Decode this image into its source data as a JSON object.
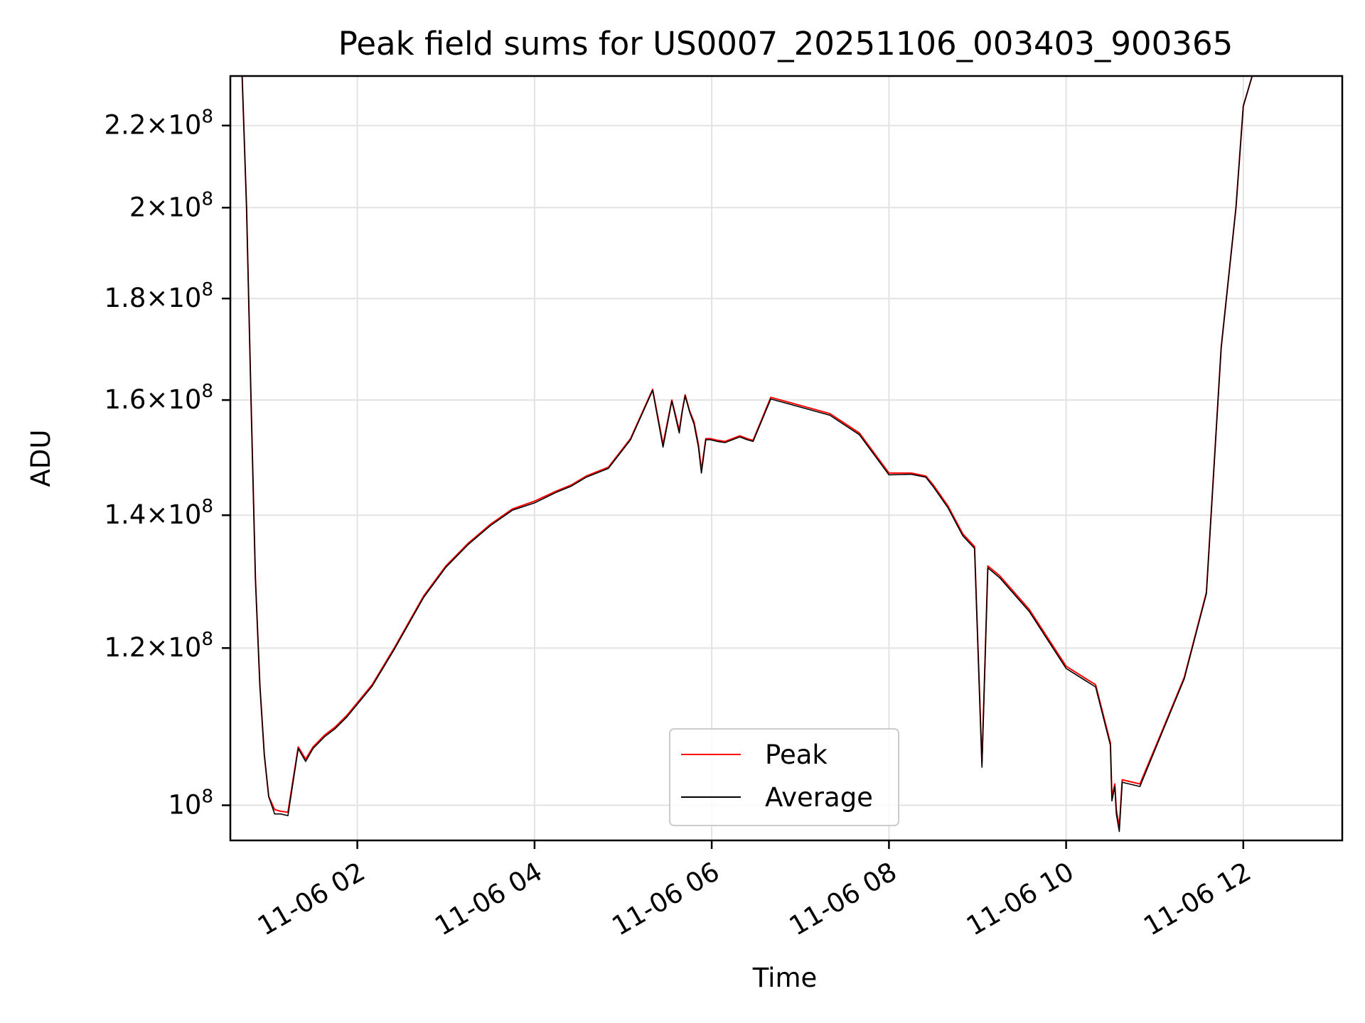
{
  "chart_data": {
    "type": "line",
    "title": "Peak field sums for US0007_20251106_003403_900365",
    "xlabel": "Time",
    "ylabel": "ADU",
    "y_scale": "log",
    "grid": true,
    "legend_position": "lower center",
    "xlim": [
      "2025-11-06 00:34",
      "2025-11-06 13:07"
    ],
    "ylim": [
      96000000,
      233000000
    ],
    "x_ticks": [
      {
        "value": "2025-11-06 02:00",
        "label": "11-06 02"
      },
      {
        "value": "2025-11-06 04:00",
        "label": "11-06 04"
      },
      {
        "value": "2025-11-06 06:00",
        "label": "11-06 06"
      },
      {
        "value": "2025-11-06 08:00",
        "label": "11-06 08"
      },
      {
        "value": "2025-11-06 10:00",
        "label": "11-06 10"
      },
      {
        "value": "2025-11-06 12:00",
        "label": "11-06 12"
      }
    ],
    "y_ticks": [
      {
        "value": 100000000,
        "mantissa": "",
        "exp": "8"
      },
      {
        "value": 120000000,
        "mantissa": "1.2",
        "exp": "8"
      },
      {
        "value": 140000000,
        "mantissa": "1.4",
        "exp": "8"
      },
      {
        "value": 160000000,
        "mantissa": "1.6",
        "exp": "8"
      },
      {
        "value": 180000000,
        "mantissa": "1.8",
        "exp": "8"
      },
      {
        "value": 200000000,
        "mantissa": "2",
        "exp": "8"
      },
      {
        "value": 220000000,
        "mantissa": "2.2",
        "exp": "8"
      }
    ],
    "x": [
      "2025-11-06 00:42",
      "2025-11-06 00:45",
      "2025-11-06 00:48",
      "2025-11-06 00:51",
      "2025-11-06 00:54",
      "2025-11-06 00:57",
      "2025-11-06 01:00",
      "2025-11-06 01:04",
      "2025-11-06 01:08",
      "2025-11-06 01:13",
      "2025-11-06 01:20",
      "2025-11-06 01:25",
      "2025-11-06 01:30",
      "2025-11-06 01:38",
      "2025-11-06 01:45",
      "2025-11-06 01:53",
      "2025-11-06 02:10",
      "2025-11-06 02:25",
      "2025-11-06 02:45",
      "2025-11-06 03:00",
      "2025-11-06 03:15",
      "2025-11-06 03:30",
      "2025-11-06 03:45",
      "2025-11-06 04:00",
      "2025-11-06 04:15",
      "2025-11-06 04:25",
      "2025-11-06 04:35",
      "2025-11-06 04:50",
      "2025-11-06 05:05",
      "2025-11-06 05:20",
      "2025-11-06 05:27",
      "2025-11-06 05:33",
      "2025-11-06 05:38",
      "2025-11-06 05:40",
      "2025-11-06 05:42",
      "2025-11-06 05:45",
      "2025-11-06 05:48",
      "2025-11-06 05:51",
      "2025-11-06 05:53",
      "2025-11-06 05:56",
      "2025-11-06 05:59",
      "2025-11-06 06:04",
      "2025-11-06 06:09",
      "2025-11-06 06:14",
      "2025-11-06 06:19",
      "2025-11-06 06:24",
      "2025-11-06 06:28",
      "2025-11-06 06:40",
      "2025-11-06 07:00",
      "2025-11-06 07:20",
      "2025-11-06 07:40",
      "2025-11-06 08:00",
      "2025-11-06 08:15",
      "2025-11-06 08:25",
      "2025-11-06 08:30",
      "2025-11-06 08:40",
      "2025-11-06 08:50",
      "2025-11-06 08:58",
      "2025-11-06 09:03",
      "2025-11-06 09:07",
      "2025-11-06 09:15",
      "2025-11-06 09:35",
      "2025-11-06 10:00",
      "2025-11-06 10:20",
      "2025-11-06 10:30",
      "2025-11-06 10:31",
      "2025-11-06 10:33",
      "2025-11-06 10:34",
      "2025-11-06 10:36",
      "2025-11-06 10:38",
      "2025-11-06 10:50",
      "2025-11-06 11:05",
      "2025-11-06 11:20",
      "2025-11-06 11:35",
      "2025-11-06 11:45",
      "2025-11-06 11:55",
      "2025-11-06 12:00",
      "2025-11-06 12:06",
      "2025-11-06 12:10",
      "2025-11-06 12:14",
      "2025-11-06 12:18",
      "2025-11-06 12:22",
      "2025-11-06 12:25",
      "2025-11-06 12:28",
      "2025-11-06 12:31",
      "2025-11-06 12:34",
      "2025-11-06 12:38",
      "2025-11-06 12:43",
      "2025-11-06 12:49",
      "2025-11-06 12:55",
      "2025-11-06 13:00"
    ],
    "series": [
      {
        "name": "Peak",
        "color": "#ff0000",
        "values": [
          233000000,
          200000000,
          160000000,
          130000000,
          115000000,
          106000000,
          101000000,
          99500000,
          99300000,
          99200000,
          107000000,
          105500000,
          107000000,
          108500000,
          109500000,
          111000000,
          115000000,
          120000000,
          127500000,
          132000000,
          135500000,
          138500000,
          141000000,
          142300000,
          144000000,
          145000000,
          146500000,
          148000000,
          153000000,
          162000000,
          152000000,
          160000000,
          154500000,
          158000000,
          161000000,
          158000000,
          156000000,
          152000000,
          147500000,
          153000000,
          153000000,
          152700000,
          152500000,
          153000000,
          153500000,
          153000000,
          152700000,
          160500000,
          159000000,
          157500000,
          154000000,
          147000000,
          147000000,
          146500000,
          145000000,
          141500000,
          137000000,
          135000000,
          105000000,
          132000000,
          130500000,
          125500000,
          117500000,
          115000000,
          107500000,
          101000000,
          102500000,
          99500000,
          97500000,
          103000000,
          102500000,
          109000000,
          116000000,
          128000000,
          170000000,
          200000000,
          225000000,
          233000000,
          233000000,
          233000000,
          233000000,
          233000000,
          233000000,
          233000000,
          233000000,
          233000000,
          233000000,
          233000000,
          233000000,
          233000000,
          233000000
        ]
      },
      {
        "name": "Average",
        "color": "#000000",
        "values": [
          233000000,
          200000000,
          160000000,
          130000000,
          115000000,
          106000000,
          101000000,
          99000000,
          99000000,
          98800000,
          106800000,
          105200000,
          106800000,
          108300000,
          109300000,
          110800000,
          114800000,
          119800000,
          127300000,
          131800000,
          135300000,
          138300000,
          140800000,
          142000000,
          143800000,
          144800000,
          146300000,
          147800000,
          152800000,
          161800000,
          151500000,
          159800000,
          154000000,
          157800000,
          160800000,
          157800000,
          155600000,
          151500000,
          147000000,
          152800000,
          152800000,
          152500000,
          152300000,
          152800000,
          153300000,
          152800000,
          152500000,
          160200000,
          158700000,
          157200000,
          153700000,
          146700000,
          146800000,
          146300000,
          144700000,
          141200000,
          136700000,
          134700000,
          104500000,
          131700000,
          130200000,
          125200000,
          117200000,
          114700000,
          107200000,
          100500000,
          102200000,
          99000000,
          97000000,
          102700000,
          102200000,
          108800000,
          115800000,
          127800000,
          170000000,
          200000000,
          225000000,
          233000000,
          233000000,
          233000000,
          233000000,
          233000000,
          233000000,
          233000000,
          233000000,
          233000000,
          233000000,
          233000000,
          233000000,
          233000000,
          233000000
        ]
      }
    ]
  }
}
